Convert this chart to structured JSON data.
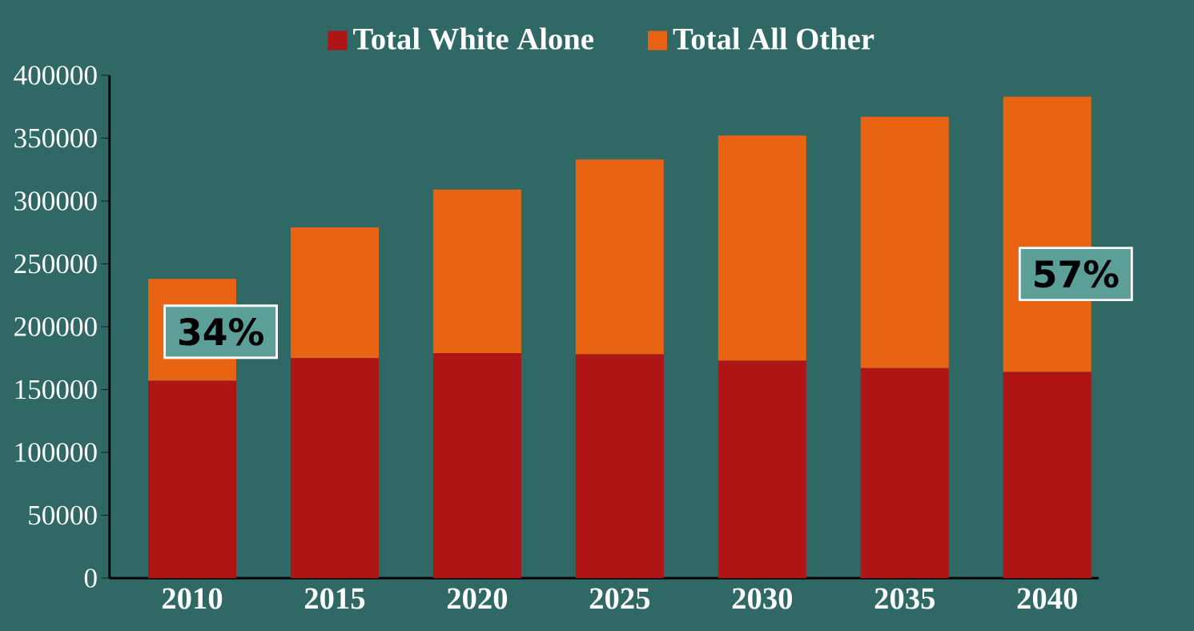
{
  "chart_data": {
    "type": "bar",
    "stacked": true,
    "categories": [
      "2010",
      "2015",
      "2020",
      "2025",
      "2030",
      "2035",
      "2040"
    ],
    "series": [
      {
        "name": "Total White Alone",
        "color": "#b01515",
        "values": [
          157000,
          175000,
          179000,
          178000,
          173000,
          167000,
          164000
        ]
      },
      {
        "name": "Total All Other",
        "color": "#e86412",
        "values": [
          81000,
          104000,
          130000,
          155000,
          179000,
          200000,
          219000
        ]
      }
    ],
    "ylim": [
      0,
      400000
    ],
    "yticks": [
      0,
      50000,
      100000,
      150000,
      200000,
      250000,
      300000,
      350000,
      400000
    ],
    "grid": false,
    "legend": "top",
    "annotations": [
      "34%",
      "57%"
    ]
  }
}
